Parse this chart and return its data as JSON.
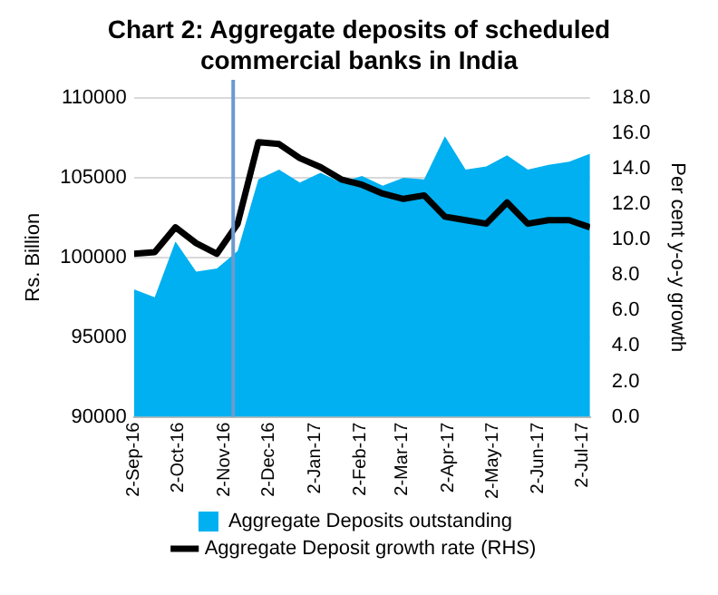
{
  "chart_data": {
    "type": "area",
    "title": "Chart 2: Aggregate deposits of scheduled commercial banks in India",
    "ylabel": "Rs. Billion",
    "y2label": "Per cent y-o-y growth",
    "x": [
      "2016-09-02",
      "2016-09-16",
      "2016-09-30",
      "2016-10-14",
      "2016-10-28",
      "2016-11-11",
      "2016-11-25",
      "2016-12-09",
      "2016-12-23",
      "2017-01-06",
      "2017-01-20",
      "2017-02-03",
      "2017-02-17",
      "2017-03-03",
      "2017-03-17",
      "2017-03-31",
      "2017-04-14",
      "2017-04-28",
      "2017-05-12",
      "2017-05-26",
      "2017-06-09",
      "2017-06-23",
      "2017-07-07"
    ],
    "series": [
      {
        "name": "Aggregate Deposits outstanding",
        "type": "area",
        "color": "#00b0f0",
        "values": [
          98000,
          97500,
          101000,
          99100,
          99300,
          100400,
          104900,
          105500,
          104700,
          105300,
          104700,
          105100,
          104500,
          105000,
          104900,
          107600,
          105500,
          105700,
          106400,
          105500,
          105800,
          106000,
          106500
        ]
      },
      {
        "name": "Aggregate Deposit growth rate (RHS)",
        "type": "line",
        "axis": "y2",
        "color": "#000000",
        "values": [
          9.2,
          9.3,
          10.7,
          9.8,
          9.2,
          10.9,
          15.5,
          15.4,
          14.6,
          14.1,
          13.4,
          13.1,
          12.6,
          12.3,
          12.5,
          11.3,
          11.1,
          10.9,
          12.1,
          10.9,
          11.1,
          11.1,
          10.7
        ]
      }
    ],
    "xlim": [
      "2016-09-02",
      "2017-07-07"
    ],
    "xticks": [
      {
        "value": "2016-09-02",
        "label": "2-Sep-16"
      },
      {
        "value": "2016-10-02",
        "label": "2-Oct-16"
      },
      {
        "value": "2016-11-02",
        "label": "2-Nov-16"
      },
      {
        "value": "2016-12-02",
        "label": "2-Dec-16"
      },
      {
        "value": "2017-01-02",
        "label": "2-Jan-17"
      },
      {
        "value": "2017-02-02",
        "label": "2-Feb-17"
      },
      {
        "value": "2017-03-02",
        "label": "2-Mar-17"
      },
      {
        "value": "2017-04-02",
        "label": "2-Apr-17"
      },
      {
        "value": "2017-05-02",
        "label": "2-May-17"
      },
      {
        "value": "2017-06-02",
        "label": "2-Jun-17"
      },
      {
        "value": "2017-07-02",
        "label": "2-Jul-17"
      }
    ],
    "ylim": [
      90000,
      110000
    ],
    "yticks": [
      90000,
      95000,
      100000,
      105000,
      110000
    ],
    "y2lim": [
      0,
      18
    ],
    "y2ticks": [
      {
        "value": 0,
        "label": "0.0"
      },
      {
        "value": 2,
        "label": "2.0"
      },
      {
        "value": 4,
        "label": "4.0"
      },
      {
        "value": 6,
        "label": "6.0"
      },
      {
        "value": 8,
        "label": "8.0"
      },
      {
        "value": 10,
        "label": "10.0"
      },
      {
        "value": 12,
        "label": "12.0"
      },
      {
        "value": 14,
        "label": "14.0"
      },
      {
        "value": 16,
        "label": "16.0"
      },
      {
        "value": 18,
        "label": "18.0"
      }
    ],
    "ref_lines": [
      {
        "axis": "x",
        "value": "2016-11-08",
        "color": "#6a9bd0"
      }
    ],
    "grid": "y",
    "legend": "bottom",
    "marker": "none",
    "line_style": "solid"
  }
}
